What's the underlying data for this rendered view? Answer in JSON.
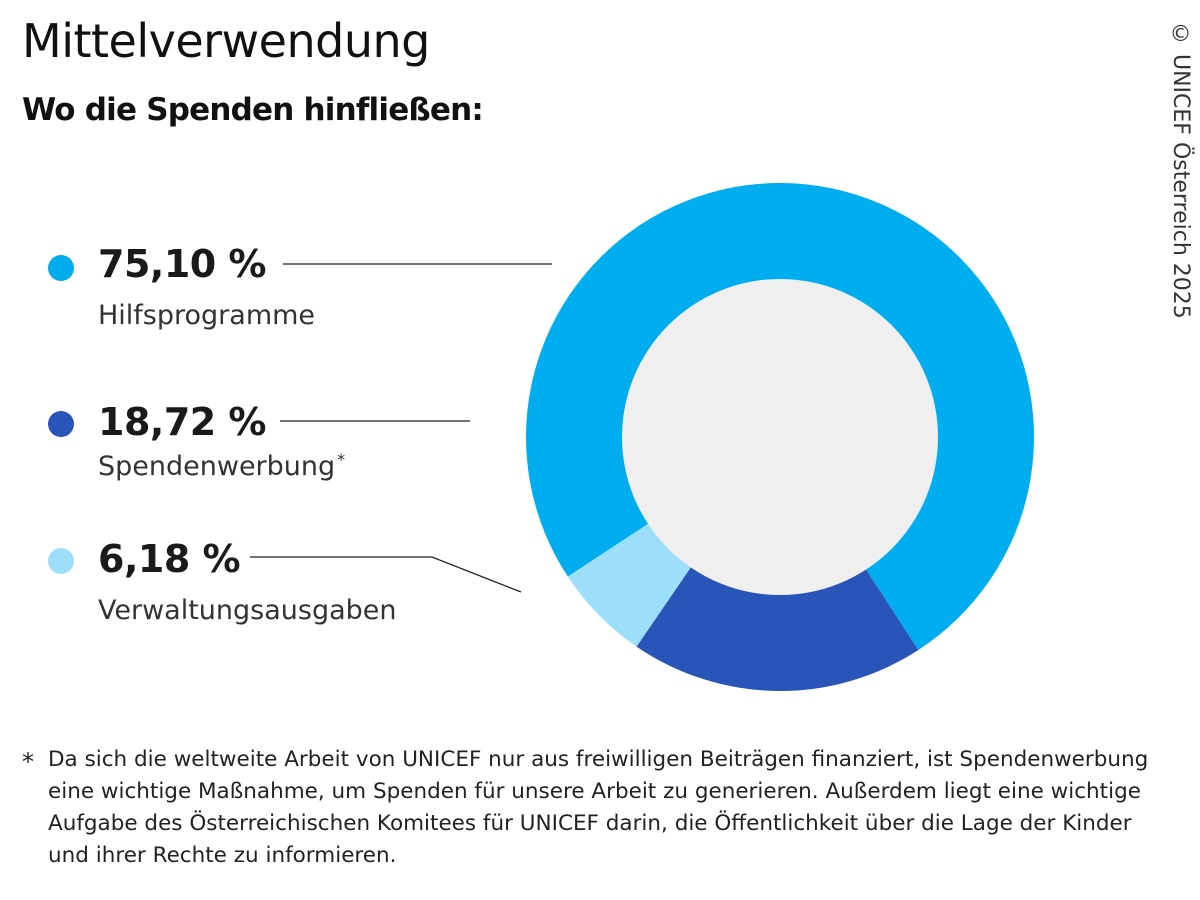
{
  "title": "Mittelverwendung",
  "subtitle": "Wo die Spenden hinfließen:",
  "copyright": "© UNICEF Österreich 2025",
  "chart_data": {
    "type": "pie",
    "variant": "donut",
    "title": "Mittelverwendung",
    "subtitle": "Wo die Spenden hinfließen:",
    "unit": "%",
    "categories": [
      "Hilfsprogramme",
      "Spendenwerbung",
      "Verwaltungsausgaben"
    ],
    "values": [
      75.1,
      18.72,
      6.18
    ],
    "value_labels": [
      "75,10 %",
      "18,72 %",
      "6,18 %"
    ],
    "colors": [
      "#00adee",
      "#2a55b8",
      "#9ddff8"
    ],
    "center_color": "#efefef",
    "legend_placement": "left",
    "annotations": [
      {
        "category": "Spendenwerbung",
        "marker": "*"
      }
    ]
  },
  "footnote": {
    "marker": "*",
    "text": "Da sich die weltweite Arbeit von UNICEF nur aus freiwilligen Beiträgen finanziert, ist Spendenwerbung eine wichtige Maßnahme, um Spenden für unsere Arbeit zu generieren. Außerdem liegt eine wichtige Aufgabe des Österreichischen Komitees für UNICEF darin, die Öffentlichkeit über die Lage der Kinder und ihrer Rechte zu informieren."
  }
}
